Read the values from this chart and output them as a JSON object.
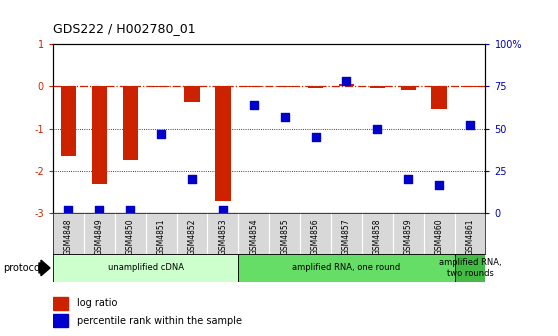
{
  "title": "GDS222 / H002780_01",
  "samples": [
    "GSM4848",
    "GSM4849",
    "GSM4850",
    "GSM4851",
    "GSM4852",
    "GSM4853",
    "GSM4854",
    "GSM4855",
    "GSM4856",
    "GSM4857",
    "GSM4858",
    "GSM4859",
    "GSM4860",
    "GSM4861"
  ],
  "log_ratio": [
    -1.65,
    -2.3,
    -1.75,
    -0.02,
    -0.38,
    -2.7,
    -0.03,
    -0.02,
    -0.05,
    0.05,
    -0.05,
    -0.1,
    -0.55,
    -0.02
  ],
  "percentile": [
    2,
    2,
    2,
    47,
    20,
    2,
    64,
    57,
    45,
    78,
    50,
    20,
    17,
    52
  ],
  "ylim_left": [
    -3,
    1
  ],
  "ylim_right": [
    0,
    100
  ],
  "hline_y": 0,
  "dotted_lines": [
    -1,
    -2
  ],
  "bar_color": "#cc2200",
  "scatter_color": "#0000cc",
  "hline_color": "#cc2200",
  "protocol_groups": [
    {
      "label": "unamplified cDNA",
      "start": 0,
      "end": 6,
      "color": "#ccffcc"
    },
    {
      "label": "amplified RNA, one round",
      "start": 6,
      "end": 13,
      "color": "#66dd66"
    },
    {
      "label": "amplified RNA,\ntwo rounds",
      "start": 13,
      "end": 14,
      "color": "#44bb44"
    }
  ],
  "legend_items": [
    {
      "color": "#cc2200",
      "label": "log ratio"
    },
    {
      "color": "#0000cc",
      "label": "percentile rank within the sample"
    }
  ],
  "protocol_label": "protocol",
  "background_color": "#ffffff",
  "right_yticks": [
    0,
    25,
    50,
    75,
    100
  ],
  "right_yticklabels": [
    "0",
    "25",
    "50",
    "75",
    "100%"
  ]
}
